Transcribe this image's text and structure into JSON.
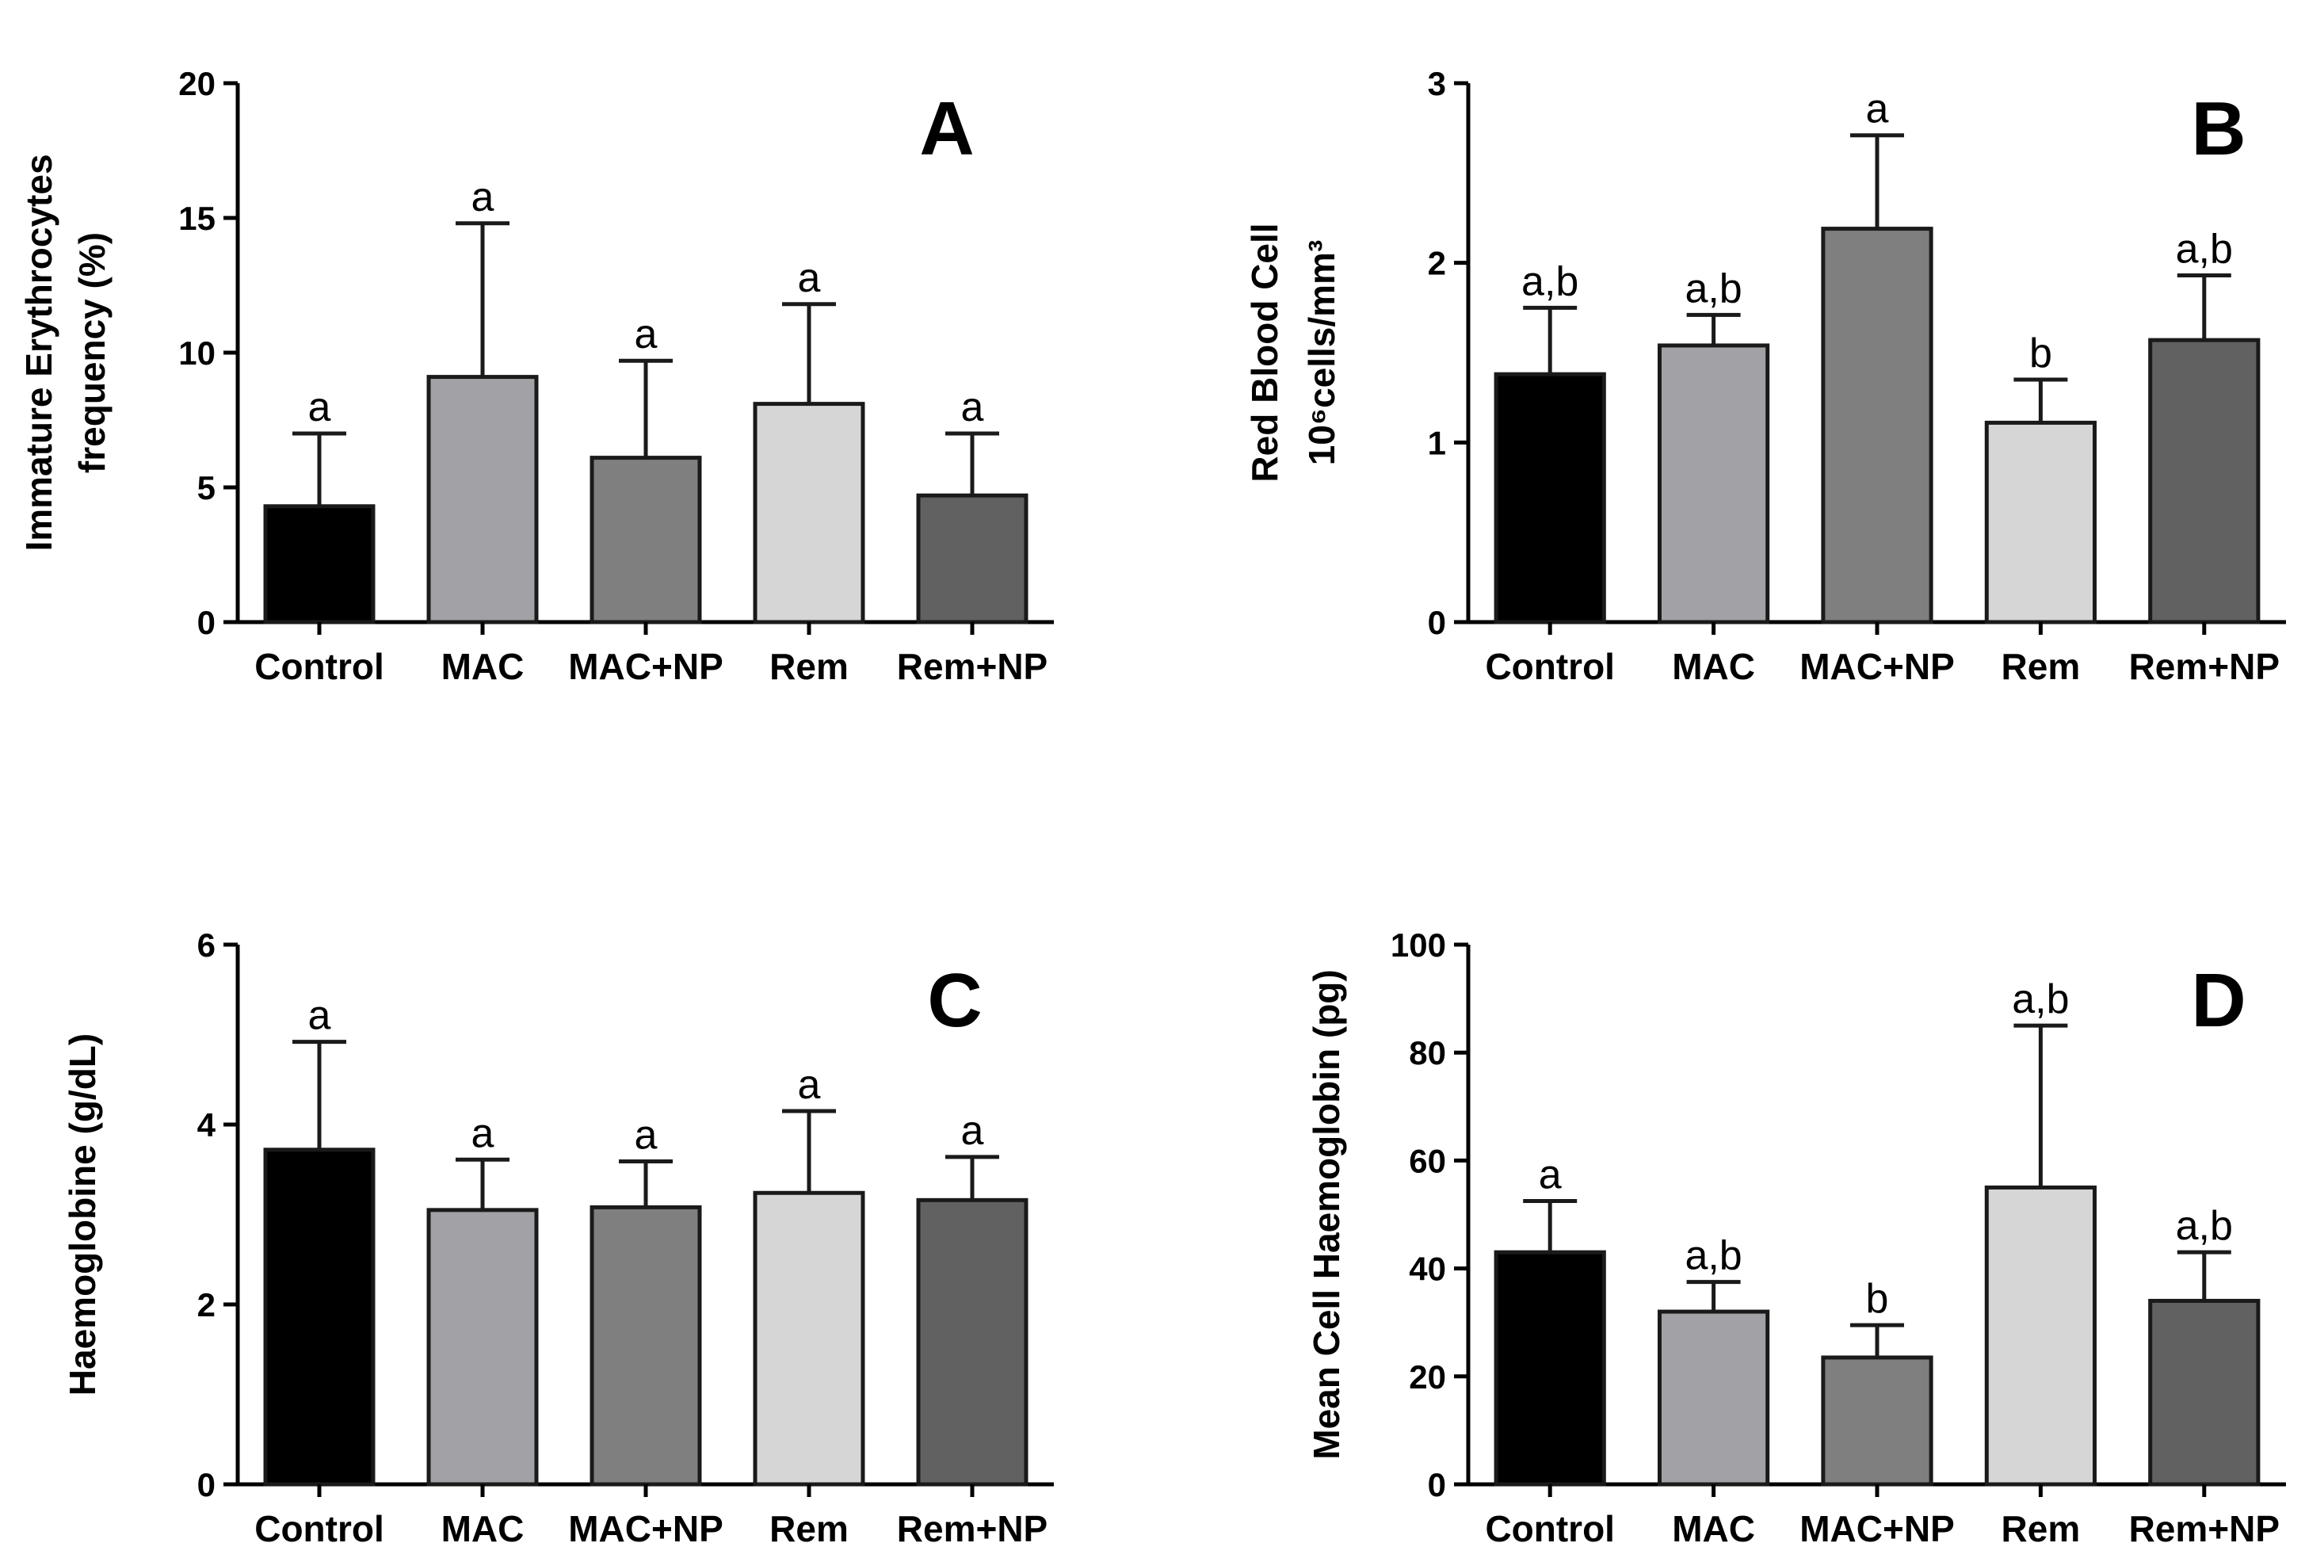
{
  "chart_data": [
    {
      "type": "bar",
      "panel": "A",
      "categories": [
        "Control",
        "MAC",
        "MAC+NP",
        "Rem",
        "Rem+NP"
      ],
      "values": [
        4.3,
        9.1,
        6.1,
        8.1,
        4.7
      ],
      "error_upper": [
        7.0,
        14.8,
        9.7,
        11.8,
        7.0
      ],
      "significance": [
        "a",
        "a",
        "a",
        "a",
        "a"
      ],
      "ylabel_lines": [
        "Immature Erythrocytes",
        "frequency (%)"
      ],
      "ylim": [
        0,
        20
      ],
      "yticks": [
        0,
        5,
        10,
        15,
        20
      ],
      "colors": [
        "#000000",
        "#a2a2a6",
        "#7f7f7f",
        "#d6d6d6",
        "#616161"
      ]
    },
    {
      "type": "bar",
      "panel": "B",
      "categories": [
        "Control",
        "MAC",
        "MAC+NP",
        "Rem",
        "Rem+NP"
      ],
      "values": [
        1.38,
        1.54,
        2.19,
        1.11,
        1.57
      ],
      "error_upper": [
        1.75,
        1.71,
        2.71,
        1.35,
        1.93
      ],
      "significance": [
        "a,b",
        "a,b",
        "a",
        "b",
        "a,b"
      ],
      "ylabel_lines": [
        "Red Blood Cell",
        "10⁶cells/mm³"
      ],
      "ylim": [
        0,
        3
      ],
      "yticks": [
        0,
        1,
        2,
        3
      ],
      "colors": [
        "#000000",
        "#a2a2a6",
        "#7f7f7f",
        "#d6d6d6",
        "#616161"
      ]
    },
    {
      "type": "bar",
      "panel": "C",
      "categories": [
        "Control",
        "MAC",
        "MAC+NP",
        "Rem",
        "Rem+NP"
      ],
      "values": [
        3.72,
        3.05,
        3.08,
        3.24,
        3.16
      ],
      "error_upper": [
        4.92,
        3.61,
        3.59,
        4.15,
        3.64
      ],
      "significance": [
        "a",
        "a",
        "a",
        "a",
        "a"
      ],
      "ylabel_lines": [
        "Haemoglobine (g/dL)"
      ],
      "ylim": [
        0,
        6
      ],
      "yticks": [
        0,
        2,
        4,
        6
      ],
      "colors": [
        "#000000",
        "#a2a2a6",
        "#7f7f7f",
        "#d6d6d6",
        "#616161"
      ]
    },
    {
      "type": "bar",
      "panel": "D",
      "categories": [
        "Control",
        "MAC",
        "MAC+NP",
        "Rem",
        "Rem+NP"
      ],
      "values": [
        43,
        32,
        23.5,
        55,
        34
      ],
      "error_upper": [
        52.5,
        37.5,
        29.5,
        85,
        43
      ],
      "significance": [
        "a",
        "a,b",
        "b",
        "a,b",
        "a,b"
      ],
      "ylabel_lines": [
        "Mean Cell Haemoglobin (pg)"
      ],
      "ylim": [
        0,
        100
      ],
      "yticks": [
        0,
        20,
        40,
        60,
        80,
        100
      ],
      "colors": [
        "#000000",
        "#a2a2a6",
        "#7f7f7f",
        "#d6d6d6",
        "#616161"
      ]
    }
  ]
}
